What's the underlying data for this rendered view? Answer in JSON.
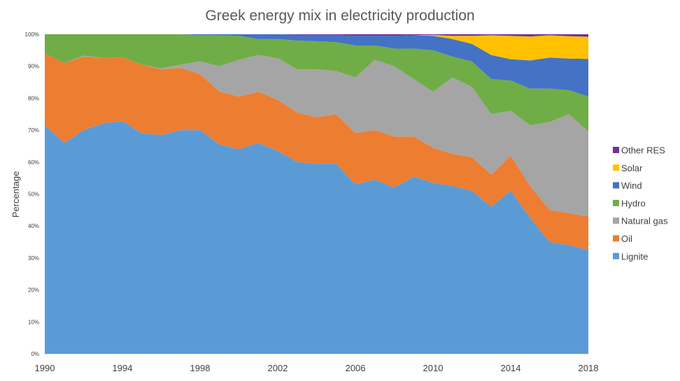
{
  "chart_data": {
    "type": "area",
    "stacked": true,
    "normalized": true,
    "title": "Greek energy mix in electricity production",
    "xlabel": "",
    "ylabel": "Percentage",
    "x": [
      1990,
      1991,
      1992,
      1993,
      1994,
      1995,
      1996,
      1997,
      1998,
      1999,
      2000,
      2001,
      2002,
      2003,
      2004,
      2005,
      2006,
      2007,
      2008,
      2009,
      2010,
      2011,
      2012,
      2013,
      2014,
      2015,
      2016,
      2017,
      2018
    ],
    "xlim": [
      1990,
      2018
    ],
    "x_tick_labels": [
      "1990",
      "1994",
      "1998",
      "2002",
      "2006",
      "2010",
      "2014",
      "2018"
    ],
    "ylim": [
      0,
      100
    ],
    "y_tick_labels": [
      "0%",
      "10%",
      "20%",
      "30%",
      "40%",
      "50%",
      "60%",
      "70%",
      "80%",
      "90%",
      "100%"
    ],
    "grid": false,
    "legend_position": "right",
    "series": [
      {
        "name": "Lignite",
        "color": "#5B9BD5",
        "values": [
          71.5,
          66,
          70,
          72.5,
          72.8,
          69,
          68.5,
          70,
          70,
          65.5,
          64,
          66,
          63.5,
          60,
          59.5,
          59.5,
          53,
          54.5,
          52,
          55.5,
          53.5,
          52.5,
          51,
          46,
          51,
          42.5,
          35,
          34,
          32.5
        ]
      },
      {
        "name": "Oil",
        "color": "#ED7D31",
        "values": [
          22.5,
          25,
          23,
          20.5,
          20,
          21.5,
          20.5,
          19.5,
          17.5,
          16.5,
          16.5,
          16,
          16,
          15.5,
          14.5,
          15.5,
          16,
          15.5,
          16,
          12.5,
          11,
          10,
          10.5,
          10,
          11,
          10,
          10,
          10,
          10.5
        ]
      },
      {
        "name": "Natural gas",
        "color": "#A5A5A5",
        "values": [
          0,
          0,
          0.3,
          0,
          0,
          0,
          0.3,
          1,
          4,
          8,
          11.5,
          11.5,
          13,
          13.5,
          15,
          13.5,
          17.5,
          22,
          22,
          18,
          17.5,
          24,
          22,
          19,
          14,
          19,
          27.5,
          31,
          26.5
        ]
      },
      {
        "name": "Hydro",
        "color": "#70AD47",
        "values": [
          6,
          9,
          6.7,
          7.5,
          7.2,
          9.5,
          10.7,
          9.5,
          8.2,
          9.7,
          7.5,
          5,
          6,
          9,
          8.8,
          9,
          10,
          4.5,
          5.5,
          9.5,
          13,
          6.5,
          8,
          11,
          9.5,
          11.5,
          10.5,
          7.5,
          11
        ]
      },
      {
        "name": "Wind",
        "color": "#4472C4",
        "values": [
          0,
          0,
          0,
          0,
          0,
          0,
          0,
          0,
          0.3,
          0.3,
          0.5,
          1.5,
          1.5,
          1.8,
          2,
          2.3,
          3,
          3,
          4,
          4.2,
          4.5,
          5.5,
          5.5,
          7.5,
          6.7,
          8.8,
          9.7,
          9.9,
          11.8
        ]
      },
      {
        "name": "Solar",
        "color": "#FFC000",
        "values": [
          0,
          0,
          0,
          0,
          0,
          0,
          0,
          0,
          0,
          0,
          0,
          0,
          0,
          0,
          0,
          0,
          0,
          0,
          0,
          0,
          0.3,
          1,
          2.5,
          6.2,
          7.3,
          7.5,
          7,
          7,
          6.9
        ]
      },
      {
        "name": "Other RES",
        "color": "#7030A0",
        "values": [
          0,
          0,
          0,
          0,
          0,
          0,
          0,
          0,
          0,
          0,
          0,
          0,
          0,
          0.2,
          0.2,
          0.2,
          0.5,
          0.5,
          0.5,
          0.3,
          0.2,
          0.5,
          0.5,
          0.3,
          0.5,
          0.7,
          0.3,
          0.6,
          0.8
        ]
      }
    ],
    "legend_order": [
      "Other RES",
      "Solar",
      "Wind",
      "Hydro",
      "Natural gas",
      "Oil",
      "Lignite"
    ]
  }
}
